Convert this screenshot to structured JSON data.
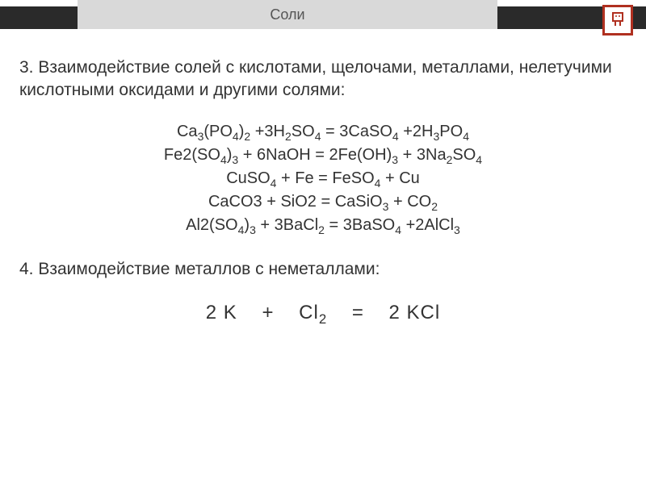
{
  "header": {
    "title": "Соли",
    "badge_bg": "#d9d9d9",
    "bar_bg": "#2a2a2a",
    "logo_border": "#b03020"
  },
  "section3": {
    "text": "3. Взаимодействие солей с кислотами, щелочами, металлами, нелетучими кислотными оксидами и другими солями:"
  },
  "equations3": {
    "lines": [
      "Ca<sub>3</sub>(PO<sub>4</sub>)<sub>2</sub> +3H<sub>2</sub>SO<sub>4</sub> = 3CaSO<sub>4</sub> +2H<sub>3</sub>PO<sub>4</sub>",
      "Fe2(SO<sub>4</sub>)<sub>3</sub> + 6NaOH = 2Fe(OH)<sub>3</sub> + 3Na<sub>2</sub>SO<sub>4</sub>",
      "CuSO<sub>4</sub> + Fe = FeSO<sub>4</sub> + Cu",
      "CaCO3 + SiO2 = CaSiO<sub>3</sub> + CO<sub>2</sub>",
      "Al2(SO<sub>4</sub>)<sub>3</sub> + 3BaCl<sub>2</sub> = 3BaSO<sub>4</sub> +2AlCl<sub>3</sub>"
    ]
  },
  "section4": {
    "text": "4. Взаимодействие металлов с неметаллами:"
  },
  "equations4": {
    "line": "2 K&nbsp;&nbsp;&nbsp;&nbsp;+&nbsp;&nbsp;&nbsp;&nbsp;Cl<sub>2</sub>&nbsp;&nbsp;&nbsp;&nbsp;=&nbsp;&nbsp;&nbsp;&nbsp;2 KCl"
  },
  "colors": {
    "text": "#333333",
    "background": "#ffffff"
  }
}
